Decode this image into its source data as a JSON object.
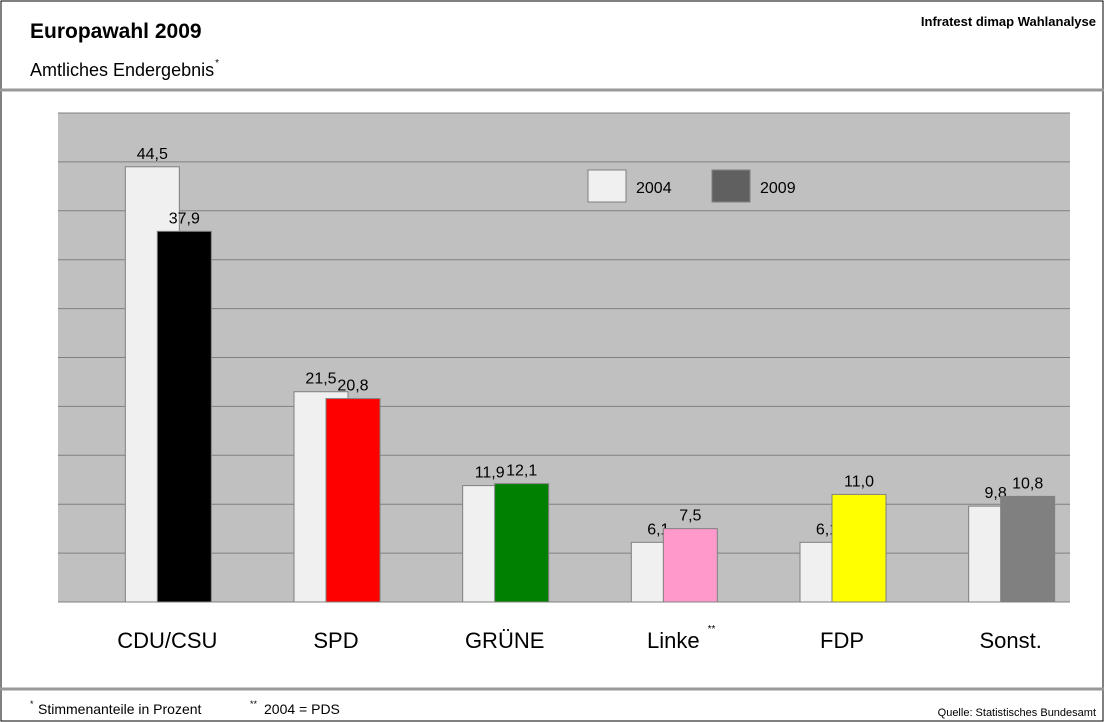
{
  "chart_data": {
    "type": "bar",
    "title": "Europawahl 2009",
    "subtitle": "Amtliches Endergebnis",
    "subtitle_mark": "*",
    "source_header": "Infratest dimap Wahlanalyse",
    "categories": [
      "CDU/CSU",
      "SPD",
      "GRÜNE",
      "Linke",
      "FDP",
      "Sonst."
    ],
    "category_marks": [
      null,
      null,
      null,
      "**",
      null,
      null
    ],
    "series": [
      {
        "name": "2004",
        "color": "#f0f0f0",
        "values": [
          44.5,
          21.5,
          11.9,
          6.1,
          6.1,
          9.8
        ],
        "value_labels": [
          "44,5",
          "21,5",
          "11,9",
          "6,1",
          "6,1",
          "9,8"
        ]
      },
      {
        "name": "2009",
        "color": "#606060",
        "point_colors": [
          "#000000",
          "#ff0000",
          "#008000",
          "#ff99cc",
          "#ffff00",
          "#808080"
        ],
        "values": [
          37.9,
          20.8,
          12.1,
          7.5,
          11.0,
          10.8
        ],
        "value_labels": [
          "37,9",
          "20,8",
          "12,1",
          "7,5",
          "11,0",
          "10,8"
        ]
      }
    ],
    "ylim": [
      0,
      50
    ],
    "yticks": [
      0,
      5,
      10,
      15,
      20,
      25,
      30,
      35,
      40,
      45,
      50
    ],
    "grid": true,
    "plot_background": "#c0c0c0",
    "footnote_mark_1": "*",
    "footnote_1": "Stimmenanteile in Prozent",
    "footnote_mark_2": "**",
    "footnote_2": "2004 = PDS",
    "source": "Quelle: Statistisches Bundesamt"
  }
}
